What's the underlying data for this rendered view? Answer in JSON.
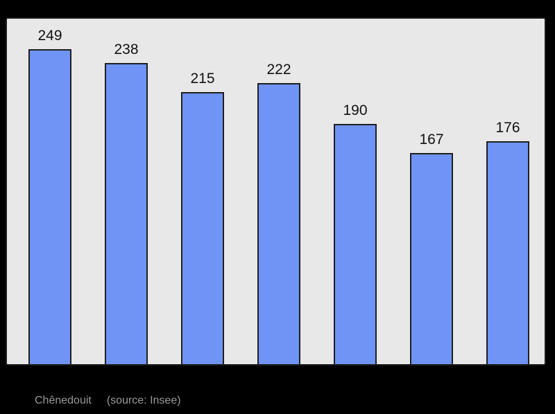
{
  "chart_data": {
    "type": "bar",
    "values": [
      249,
      238,
      215,
      222,
      190,
      167,
      176
    ],
    "value_labels": [
      "249",
      "238",
      "215",
      "222",
      "190",
      "167",
      "176"
    ],
    "ylim": [
      0,
      273
    ],
    "grid": false,
    "legend": "none",
    "bar_outline": true
  },
  "footer": {
    "label": "Chênedouit",
    "source": "(source: Insee)"
  },
  "colors": {
    "page_bg": "#000000",
    "plot_bg": "#e8e8e8",
    "plot_border": "#1c1c1c",
    "bar_fill": "#6f94f5",
    "bar_border": "#1e1e1e",
    "label_text": "#111111",
    "footer_text": "#999999"
  }
}
